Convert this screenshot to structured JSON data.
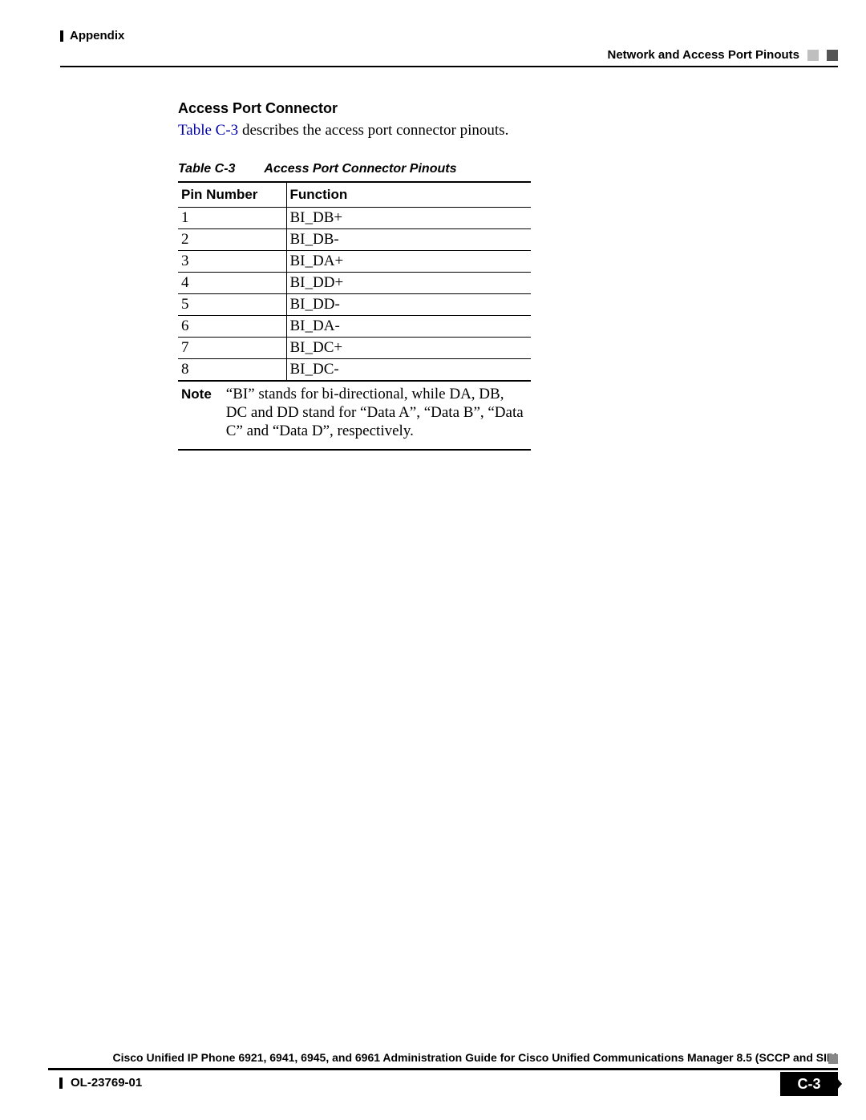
{
  "header": {
    "left_label": "Appendix",
    "right_label": "Network and Access Port Pinouts"
  },
  "section": {
    "heading": "Access Port Connector",
    "intro_link": "Table C-3",
    "intro_rest": " describes the access port connector pinouts.",
    "caption_ref": "Table C-3",
    "caption_title": "Access Port Connector Pinouts"
  },
  "table": {
    "columns": [
      "Pin Number",
      "Function"
    ],
    "rows": [
      [
        "1",
        "BI_DB+"
      ],
      [
        "2",
        "BI_DB-"
      ],
      [
        "3",
        "BI_DA+"
      ],
      [
        "4",
        "BI_DD+"
      ],
      [
        "5",
        "BI_DD-"
      ],
      [
        "6",
        "BI_DA-"
      ],
      [
        "7",
        "BI_DC+"
      ],
      [
        "8",
        "BI_DC-"
      ]
    ],
    "note_label": "Note",
    "note_text": "“BI” stands for bi-directional, while DA, DB, DC and DD stand for “Data A”, “Data B”, “Data C” and “Data D”, respectively."
  },
  "footer": {
    "title": "Cisco Unified IP Phone 6921, 6941, 6945, and 6961 Administration Guide for Cisco Unified Communications Manager 8.5 (SCCP and SIP)",
    "doc_id": "OL-23769-01",
    "page": "C-3"
  },
  "colors": {
    "link": "#0000aa",
    "text": "#000000",
    "bg": "#ffffff"
  }
}
